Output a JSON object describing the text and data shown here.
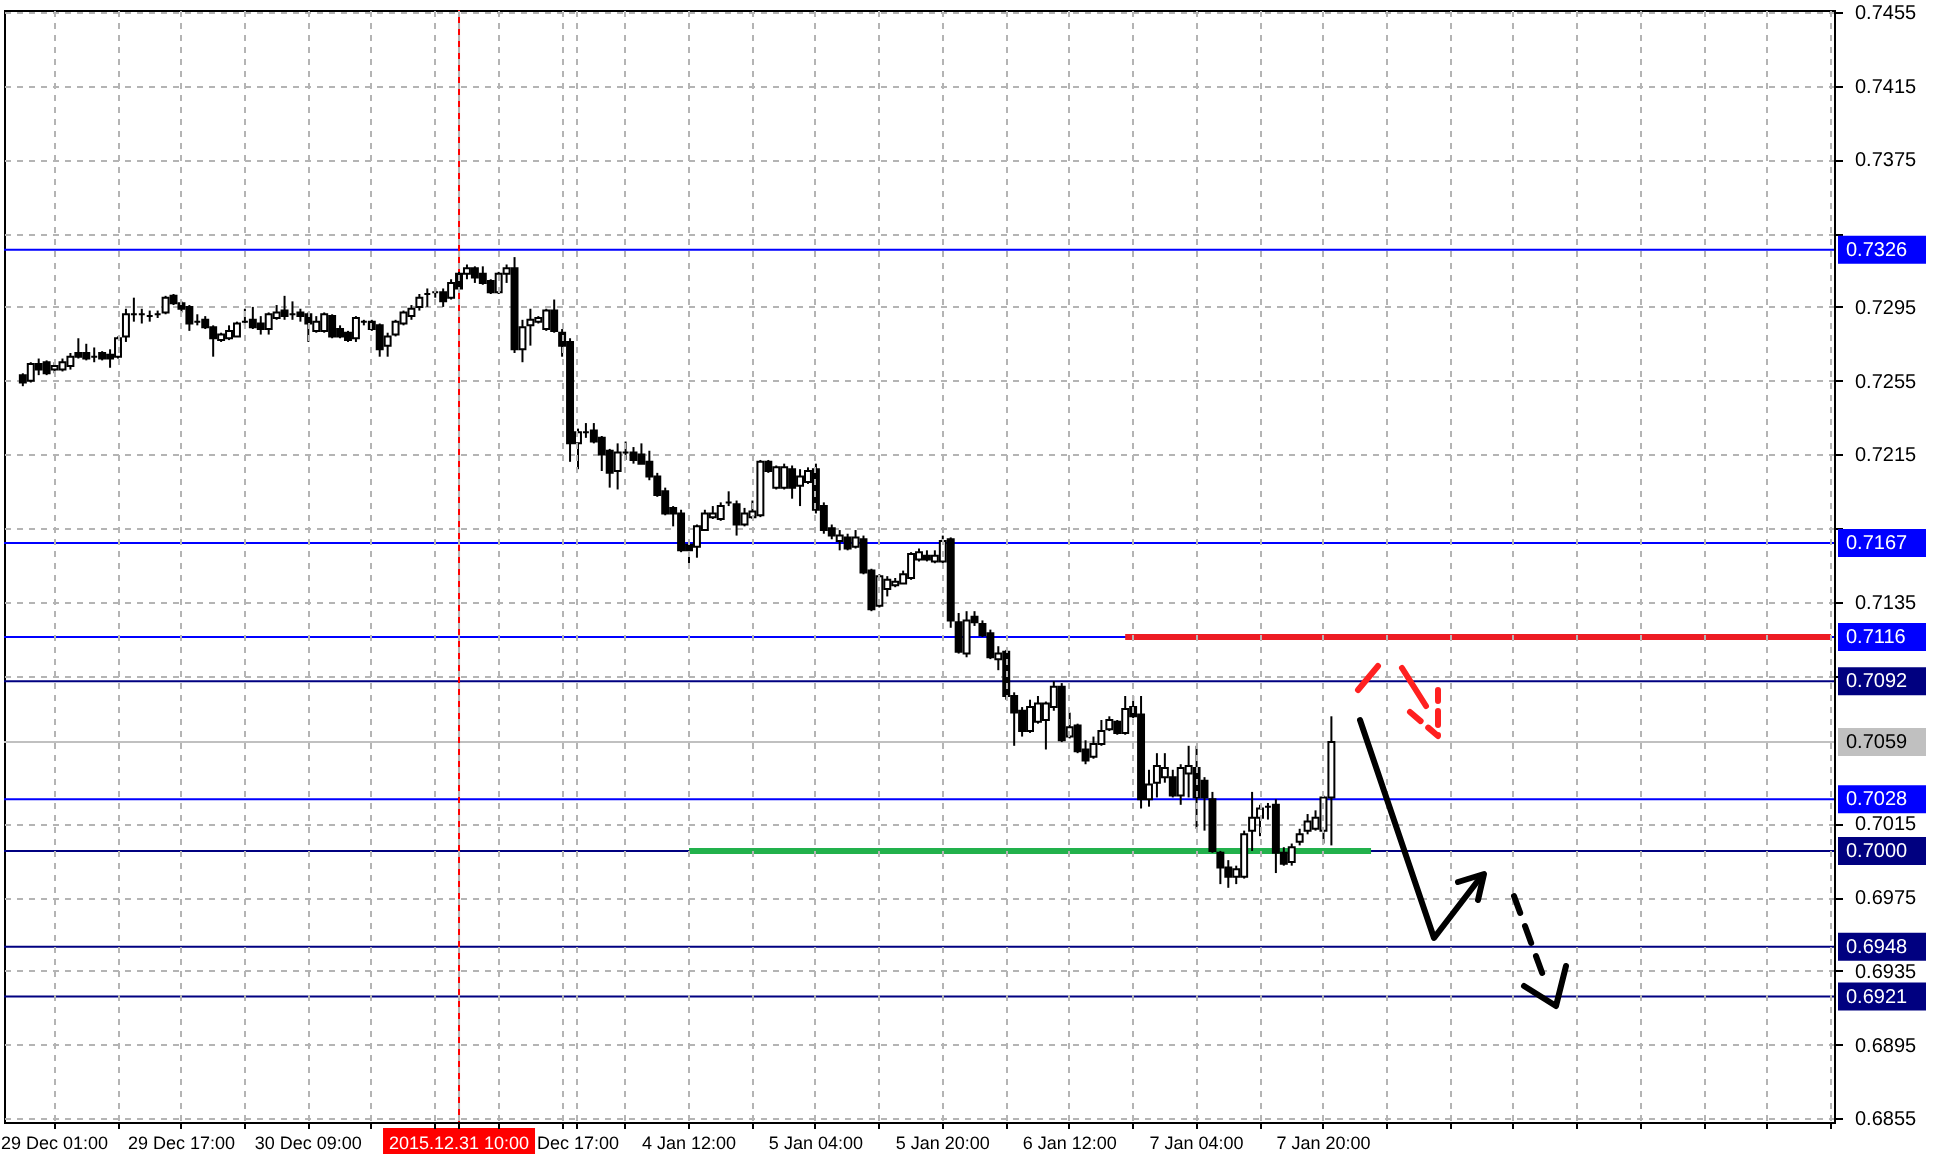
{
  "chart_data": {
    "type": "candlestick",
    "categories": [
      null,
      null,
      null,
      null,
      null,
      null,
      "29 Dec 01:00",
      null,
      null,
      null,
      null,
      null,
      null,
      null,
      null,
      null,
      null,
      null,
      null,
      null,
      null,
      null,
      "29 Dec 17:00",
      null,
      null,
      null,
      null,
      null,
      null,
      null,
      null,
      null,
      null,
      null,
      null,
      null,
      null,
      null,
      "30 Dec 09:00",
      null,
      null,
      null,
      null,
      null,
      null,
      null,
      null,
      null,
      null,
      null,
      null,
      null,
      null,
      null,
      null,
      null,
      null,
      "2015.12.31 10:00",
      null,
      null,
      null,
      null,
      null,
      null,
      null,
      null,
      null,
      null,
      null,
      null,
      null,
      null,
      "Dec 17:00",
      null,
      null,
      null,
      null,
      null,
      null,
      null,
      null,
      null,
      null,
      null,
      null,
      null,
      "4 Jan 12:00",
      null,
      null,
      null,
      null,
      null,
      null,
      null,
      null,
      null,
      null,
      null,
      null,
      null,
      null,
      null,
      "5 Jan 04:00",
      null,
      null,
      null,
      null,
      null,
      null,
      null,
      null,
      null,
      null,
      null,
      null,
      null,
      null,
      null,
      "5 Jan 20:00",
      null,
      null,
      null,
      null,
      null,
      null,
      null,
      null,
      null,
      null,
      null,
      null,
      null,
      null,
      null,
      "6 Jan 12:00",
      null,
      null,
      null,
      null,
      null,
      null,
      null,
      null,
      null,
      null,
      null,
      null,
      null,
      null,
      null,
      "7 Jan 04:00",
      null,
      null,
      null,
      null,
      null,
      null,
      null,
      null,
      null,
      null,
      null,
      null,
      null,
      null,
      null,
      "7 Jan 20:00",
      null,
      null,
      null,
      null,
      null,
      null,
      null,
      null,
      null,
      null,
      null,
      null,
      null,
      null,
      null,
      null,
      null,
      null,
      null,
      null,
      null,
      null,
      null,
      null,
      null,
      null,
      null,
      null,
      null,
      null,
      null,
      null,
      null,
      null,
      null,
      null,
      null,
      null,
      null,
      null,
      null,
      null,
      null,
      null,
      null,
      null,
      null,
      null,
      null,
      null,
      null,
      null,
      null,
      null,
      null,
      null,
      null,
      null,
      null,
      null,
      null,
      null,
      null,
      null
    ],
    "ohlc": [
      null,
      null,
      [
        0.7258,
        0.7259,
        0.7252,
        0.7254
      ],
      [
        0.7255,
        0.7265,
        0.7254,
        0.7264
      ],
      [
        0.7264,
        0.7267,
        0.7258,
        0.7261
      ],
      [
        0.7265,
        0.7266,
        0.7258,
        0.7259
      ],
      [
        0.7261,
        0.7265,
        0.7259,
        0.7263
      ],
      [
        0.7261,
        0.7267,
        0.726,
        0.7265
      ],
      [
        0.7263,
        0.727,
        0.7261,
        0.7268
      ],
      [
        0.727,
        0.7278,
        0.7267,
        0.7268
      ],
      [
        0.727,
        0.7275,
        0.7266,
        0.7267
      ],
      [
        0.7268,
        0.7273,
        0.7265,
        0.7268
      ],
      [
        0.727,
        0.7271,
        0.7266,
        0.7267
      ],
      [
        0.7269,
        0.7272,
        0.7262,
        0.7267
      ],
      [
        0.7268,
        0.7279,
        0.7267,
        0.7278
      ],
      [
        0.7279,
        0.7294,
        0.7276,
        0.7291
      ],
      [
        0.7291,
        0.73,
        0.7287,
        0.7291
      ],
      [
        0.7291,
        0.7294,
        0.7286,
        0.7291
      ],
      [
        0.729,
        0.7293,
        0.7287,
        0.729
      ],
      [
        0.7291,
        0.7293,
        0.7289,
        0.7291
      ],
      [
        0.7292,
        0.7301,
        0.7291,
        0.73
      ],
      [
        0.7301,
        0.7302,
        0.7296,
        0.7297
      ],
      [
        0.7297,
        0.7298,
        0.7292,
        0.7294
      ],
      [
        0.7295,
        0.7296,
        0.7282,
        0.7286
      ],
      [
        0.7287,
        0.7291,
        0.7285,
        0.7287
      ],
      [
        0.7288,
        0.729,
        0.7283,
        0.7284
      ],
      [
        0.7284,
        0.7285,
        0.7268,
        0.7278
      ],
      [
        0.7277,
        0.7281,
        0.7276,
        0.728
      ],
      [
        0.7278,
        0.7285,
        0.7277,
        0.7282
      ],
      [
        0.7279,
        0.7287,
        0.7279,
        0.7286
      ],
      [
        0.7287,
        0.7294,
        0.7285,
        0.7287
      ],
      [
        0.7288,
        0.7295,
        0.7283,
        0.7284
      ],
      [
        0.7286,
        0.729,
        0.728,
        0.7283
      ],
      [
        0.7283,
        0.7292,
        0.728,
        0.7291
      ],
      [
        0.7289,
        0.7296,
        0.7288,
        0.7292
      ],
      [
        0.7293,
        0.7301,
        0.7288,
        0.729
      ],
      [
        0.7291,
        0.7298,
        0.7288,
        0.7291
      ],
      [
        0.7292,
        0.7294,
        0.7287,
        0.729
      ],
      [
        0.7291,
        0.7292,
        0.7276,
        0.7286
      ],
      [
        0.7282,
        0.729,
        0.7281,
        0.7287
      ],
      [
        0.7282,
        0.7292,
        0.7281,
        0.7291
      ],
      [
        0.729,
        0.7291,
        0.7278,
        0.7279
      ],
      [
        0.7283,
        0.7285,
        0.7278,
        0.7279
      ],
      [
        0.7281,
        0.7282,
        0.7276,
        0.7277
      ],
      [
        0.7278,
        0.729,
        0.7276,
        0.7289
      ],
      [
        0.7287,
        0.7288,
        0.7285,
        0.7287
      ],
      [
        0.7287,
        0.7288,
        0.7282,
        0.7283
      ],
      [
        0.7285,
        0.7286,
        0.7268,
        0.7272
      ],
      [
        0.7274,
        0.7281,
        0.7268,
        0.7279
      ],
      [
        0.728,
        0.7288,
        0.7279,
        0.7287
      ],
      [
        0.7286,
        0.7293,
        0.7285,
        0.7292
      ],
      [
        0.729,
        0.7296,
        0.7288,
        0.7294
      ],
      [
        0.7295,
        0.7302,
        0.7293,
        0.73
      ],
      [
        0.7302,
        0.7305,
        0.7295,
        0.7302
      ],
      [
        0.7303,
        0.7305,
        0.73,
        0.7303
      ],
      [
        0.7303,
        0.7305,
        0.7295,
        0.7298
      ],
      [
        0.73,
        0.731,
        0.7299,
        0.7308
      ],
      [
        0.7313,
        0.7314,
        0.7304,
        0.7305
      ],
      [
        0.7313,
        0.7318,
        0.731,
        0.7316
      ],
      [
        0.7316,
        0.7317,
        0.7308,
        0.7311
      ],
      [
        0.7313,
        0.7317,
        0.7307,
        0.7308
      ],
      [
        0.7309,
        0.731,
        0.7302,
        0.7303
      ],
      [
        0.7303,
        0.7314,
        0.7302,
        0.7313
      ],
      [
        0.7313,
        0.7318,
        0.7308,
        0.7316
      ],
      [
        0.7316,
        0.7322,
        0.727,
        0.7272
      ],
      [
        0.7272,
        0.7288,
        0.7265,
        0.7284
      ],
      [
        0.7285,
        0.7294,
        0.7274,
        0.7288
      ],
      [
        0.7287,
        0.729,
        0.7286,
        0.7289
      ],
      [
        0.7283,
        0.7294,
        0.7282,
        0.7293
      ],
      [
        0.7293,
        0.7299,
        0.7281,
        0.7282
      ],
      [
        0.7281,
        0.7283,
        0.7268,
        0.7274
      ],
      [
        0.7276,
        0.7278,
        0.7211,
        0.7221
      ],
      [
        0.7221,
        0.7229,
        0.7207,
        0.7227
      ],
      [
        0.7227,
        0.7232,
        0.7224,
        0.7227
      ],
      [
        0.7228,
        0.7232,
        0.7221,
        0.7222
      ],
      [
        0.7224,
        0.7225,
        0.7206,
        0.7215
      ],
      [
        0.7217,
        0.7218,
        0.7197,
        0.7205
      ],
      [
        0.7206,
        0.7221,
        0.7196,
        0.7216
      ],
      [
        0.7216,
        0.7222,
        0.7212,
        0.7216
      ],
      [
        0.7216,
        0.7219,
        0.721,
        0.7212
      ],
      [
        0.7215,
        0.7221,
        0.721,
        0.721
      ],
      [
        0.7211,
        0.7217,
        0.7201,
        0.7203
      ],
      [
        0.7203,
        0.7205,
        0.7192,
        0.7193
      ],
      [
        0.7195,
        0.7197,
        0.7182,
        0.7183
      ],
      [
        0.7186,
        0.7187,
        0.7176,
        0.7183
      ],
      [
        0.7183,
        0.7185,
        0.7162,
        0.7163
      ],
      [
        0.7166,
        0.7167,
        0.7153,
        0.7163
      ],
      [
        0.7165,
        0.7177,
        0.7159,
        0.7176
      ],
      [
        0.7174,
        0.7185,
        0.7174,
        0.7183
      ],
      [
        0.7181,
        0.7187,
        0.718,
        0.7183
      ],
      [
        0.718,
        0.7189,
        0.7179,
        0.7187
      ],
      [
        0.7189,
        0.7195,
        0.7187,
        0.7189
      ],
      [
        0.7188,
        0.719,
        0.7171,
        0.7177
      ],
      [
        0.7177,
        0.7186,
        0.7176,
        0.7183
      ],
      [
        0.7181,
        0.719,
        0.718,
        0.7184
      ],
      [
        0.7182,
        0.7212,
        0.7181,
        0.7211
      ],
      [
        0.7211,
        0.7212,
        0.7205,
        0.7206
      ],
      [
        0.7197,
        0.7209,
        0.7196,
        0.7208
      ],
      [
        0.7197,
        0.721,
        0.7196,
        0.7208
      ],
      [
        0.7207,
        0.7209,
        0.7191,
        0.7197
      ],
      [
        0.7198,
        0.7207,
        0.7187,
        0.7203
      ],
      [
        0.72,
        0.7208,
        0.7199,
        0.7206
      ],
      [
        0.7207,
        0.721,
        0.7183,
        0.7185
      ],
      [
        0.7187,
        0.7189,
        0.7172,
        0.7174
      ],
      [
        0.7175,
        0.7177,
        0.7169,
        0.7171
      ],
      [
        0.7168,
        0.7174,
        0.7163,
        0.7171
      ],
      [
        0.717,
        0.7172,
        0.7163,
        0.7164
      ],
      [
        0.7165,
        0.7174,
        0.7164,
        0.717
      ],
      [
        0.7169,
        0.7171,
        0.715,
        0.7151
      ],
      [
        0.7152,
        0.7153,
        0.713,
        0.7131
      ],
      [
        0.7133,
        0.715,
        0.7132,
        0.7149
      ],
      [
        0.7142,
        0.7149,
        0.7138,
        0.7147
      ],
      [
        0.7144,
        0.7148,
        0.7143,
        0.7146
      ],
      [
        0.7145,
        0.7152,
        0.7145,
        0.715
      ],
      [
        0.7148,
        0.7162,
        0.7147,
        0.7161
      ],
      [
        0.7158,
        0.7164,
        0.7157,
        0.7162
      ],
      [
        0.716,
        0.7163,
        0.7157,
        0.7158
      ],
      [
        0.7157,
        0.7163,
        0.7156,
        0.716
      ],
      [
        0.7157,
        0.7171,
        0.7156,
        0.7168
      ],
      [
        0.7169,
        0.717,
        0.7121,
        0.7125
      ],
      [
        0.7124,
        0.7129,
        0.7107,
        0.7108
      ],
      [
        0.7107,
        0.713,
        0.7105,
        0.7125
      ],
      [
        0.7127,
        0.713,
        0.7122,
        0.7124
      ],
      [
        0.7123,
        0.7125,
        0.7116,
        0.7117
      ],
      [
        0.7118,
        0.712,
        0.7104,
        0.7105
      ],
      [
        0.7104,
        0.7111,
        0.7098,
        0.7107
      ],
      [
        0.7108,
        0.7109,
        0.7082,
        0.7084
      ],
      [
        0.7084,
        0.7086,
        0.7057,
        0.7075
      ],
      [
        0.7076,
        0.7078,
        0.7062,
        0.7065
      ],
      [
        0.7065,
        0.7082,
        0.7064,
        0.7078
      ],
      [
        0.707,
        0.7084,
        0.7069,
        0.708
      ],
      [
        0.7071,
        0.7081,
        0.7055,
        0.708
      ],
      [
        0.7078,
        0.7092,
        0.7076,
        0.7089
      ],
      [
        0.7089,
        0.7091,
        0.7059,
        0.706
      ],
      [
        0.7062,
        0.7075,
        0.7061,
        0.7067
      ],
      [
        0.7068,
        0.7069,
        0.7053,
        0.7054
      ],
      [
        0.7055,
        0.706,
        0.7047,
        0.7049
      ],
      [
        0.7051,
        0.7062,
        0.705,
        0.7058
      ],
      [
        0.7058,
        0.7071,
        0.7057,
        0.7065
      ],
      [
        0.7066,
        0.7073,
        0.7065,
        0.7071
      ],
      [
        0.707,
        0.7071,
        0.7063,
        0.7064
      ],
      [
        0.7064,
        0.7084,
        0.7063,
        0.7077
      ],
      [
        0.7078,
        0.7084,
        0.7072,
        0.7073
      ],
      [
        0.7074,
        0.7084,
        0.7023,
        0.7028
      ],
      [
        0.7028,
        0.7044,
        0.7024,
        0.7036
      ],
      [
        0.7037,
        0.7053,
        0.7029,
        0.7046
      ],
      [
        0.704,
        0.7053,
        0.7037,
        0.7045
      ],
      [
        0.704,
        0.7044,
        0.7029,
        0.703
      ],
      [
        0.703,
        0.7047,
        0.7025,
        0.7045
      ],
      [
        0.7042,
        0.7057,
        0.7029,
        0.7046
      ],
      [
        0.7045,
        0.7057,
        0.7012,
        0.7029
      ],
      [
        0.7038,
        0.704,
        0.7011,
        0.7029
      ],
      [
        0.7028,
        0.7032,
        0.6999,
        0.7
      ],
      [
        0.6999,
        0.7,
        0.6982,
        0.6991
      ],
      [
        0.6991,
        0.6995,
        0.698,
        0.6986
      ],
      [
        0.6986,
        0.6992,
        0.6982,
        0.699
      ],
      [
        0.6986,
        0.7011,
        0.6985,
        0.7009
      ],
      [
        0.7011,
        0.7032,
        0.7,
        0.7018
      ],
      [
        0.7018,
        0.7025,
        0.7008,
        0.7023
      ],
      [
        0.7024,
        0.7026,
        0.7017,
        0.7024
      ],
      [
        0.7025,
        0.7028,
        0.6988,
        0.6999
      ],
      [
        0.6999,
        0.7002,
        0.6992,
        0.6993
      ],
      [
        0.6994,
        0.7004,
        0.6992,
        0.7002
      ],
      [
        0.7005,
        0.7012,
        0.7003,
        0.7009
      ],
      [
        0.7011,
        0.702,
        0.7009,
        0.7016
      ],
      [
        0.7012,
        0.7022,
        0.7011,
        0.7018
      ],
      [
        0.7011,
        0.703,
        0.7004,
        0.7029
      ],
      [
        0.7029,
        0.7073,
        0.7003,
        0.7059
      ],
      null,
      null,
      null,
      null,
      null,
      null,
      null,
      null,
      null,
      null,
      null,
      null,
      null,
      null,
      null,
      null,
      null,
      null,
      null,
      null,
      null,
      null,
      null,
      null,
      null,
      null,
      null,
      null,
      null,
      null,
      null,
      null,
      null,
      null,
      null,
      null,
      null,
      null,
      null,
      null,
      null,
      null,
      null,
      null,
      null,
      null,
      null,
      null,
      null,
      null,
      null,
      null,
      null,
      null,
      null,
      null,
      null,
      null,
      null,
      null,
      null,
      null,
      null
    ],
    "series": [
      {
        "type": "line",
        "color": "#22b14c",
        "values": [
          null,
          null,
          null,
          null,
          null,
          null,
          null,
          null,
          null,
          null,
          null,
          null,
          null,
          null,
          null,
          null,
          null,
          null,
          null,
          null,
          null,
          null,
          null,
          null,
          null,
          null,
          null,
          null,
          null,
          null,
          null,
          null,
          null,
          null,
          null,
          null,
          null,
          null,
          null,
          null,
          null,
          null,
          null,
          null,
          null,
          null,
          null,
          null,
          null,
          null,
          null,
          null,
          null,
          null,
          null,
          null,
          null,
          null,
          null,
          null,
          null,
          null,
          null,
          null,
          null,
          null,
          null,
          null,
          null,
          null,
          null,
          null,
          null,
          null,
          null,
          null,
          null,
          null,
          null,
          null,
          null,
          null,
          null,
          null,
          null,
          null,
          0.7,
          0.7,
          0.7,
          0.7,
          0.7,
          0.7,
          0.7,
          0.7,
          0.7,
          0.7,
          0.7,
          0.7,
          0.7,
          0.7,
          0.7,
          0.7,
          0.7,
          0.7,
          0.7,
          0.7,
          0.7,
          0.7,
          0.7,
          0.7,
          0.7,
          0.7,
          0.7,
          0.7,
          0.7,
          0.7,
          0.7,
          0.7,
          0.7,
          0.7,
          0.7,
          0.7,
          0.7,
          0.7,
          0.7,
          0.7,
          0.7,
          0.7,
          0.7,
          0.7,
          0.7,
          0.7,
          0.7,
          0.7,
          0.7,
          0.7,
          0.7,
          0.7,
          0.7,
          0.7,
          0.7,
          0.7,
          0.7,
          0.7,
          0.7,
          0.7,
          0.7,
          0.7,
          0.7,
          0.7,
          0.7,
          0.7,
          0.7,
          0.7,
          0.7,
          0.7,
          0.7,
          0.7,
          0.7,
          0.7,
          0.7,
          0.7,
          0.7,
          0.7,
          0.7,
          0.7,
          0.7,
          0.7,
          0.7,
          0.7,
          0.7,
          0.7,
          0.7,
          null,
          null,
          null,
          null,
          null,
          null,
          null,
          null,
          null,
          null,
          null,
          null,
          null,
          null,
          null,
          null,
          null,
          null,
          null,
          null,
          null,
          null,
          null,
          null,
          null,
          null,
          null,
          null,
          null,
          null,
          null,
          null,
          null,
          null,
          null,
          null,
          null,
          null,
          null,
          null,
          null,
          null,
          null,
          null,
          null,
          null,
          null,
          null,
          null,
          null,
          null,
          null,
          null,
          null,
          null,
          null,
          null,
          null
        ]
      },
      {
        "type": "line",
        "color": "#ed1c24",
        "values": [
          null,
          null,
          null,
          null,
          null,
          null,
          null,
          null,
          null,
          null,
          null,
          null,
          null,
          null,
          null,
          null,
          null,
          null,
          null,
          null,
          null,
          null,
          null,
          null,
          null,
          null,
          null,
          null,
          null,
          null,
          null,
          null,
          null,
          null,
          null,
          null,
          null,
          null,
          null,
          null,
          null,
          null,
          null,
          null,
          null,
          null,
          null,
          null,
          null,
          null,
          null,
          null,
          null,
          null,
          null,
          null,
          null,
          null,
          null,
          null,
          null,
          null,
          null,
          null,
          null,
          null,
          null,
          null,
          null,
          null,
          null,
          null,
          null,
          null,
          null,
          null,
          null,
          null,
          null,
          null,
          null,
          null,
          null,
          null,
          null,
          null,
          null,
          null,
          null,
          null,
          null,
          null,
          null,
          null,
          null,
          null,
          null,
          null,
          null,
          null,
          null,
          null,
          null,
          null,
          null,
          null,
          null,
          null,
          null,
          null,
          null,
          null,
          null,
          null,
          null,
          null,
          null,
          null,
          null,
          null,
          null,
          null,
          null,
          null,
          null,
          null,
          null,
          null,
          null,
          null,
          null,
          null,
          null,
          null,
          null,
          null,
          null,
          null,
          null,
          null,
          null,
          0.7116,
          0.7116,
          0.7116,
          0.7116,
          0.7116,
          0.7116,
          0.7116,
          0.7116,
          0.7116,
          0.7116,
          0.7116,
          0.7116,
          0.7116,
          0.7116,
          0.7116,
          0.7116,
          0.7116,
          0.7116,
          0.7116,
          0.7116,
          0.7116,
          0.7116,
          0.7116,
          0.7116,
          0.7116,
          0.7116,
          0.7116,
          0.7116,
          0.7116,
          0.7116,
          0.7116,
          0.7116,
          0.7116,
          0.7116,
          0.7116,
          0.7116,
          0.7116,
          0.7116,
          0.7116,
          0.7116,
          0.7116,
          0.7116,
          0.7116,
          0.7116,
          0.7116,
          0.7116,
          0.7116,
          0.7116,
          0.7116,
          0.7116,
          0.7116,
          0.7116,
          0.7116,
          0.7116,
          0.7116,
          0.7116,
          0.7116,
          0.7116,
          0.7116,
          0.7116,
          0.7116,
          0.7116,
          0.7116,
          0.7116,
          0.7116,
          0.7116,
          0.7116,
          0.7116,
          0.7116,
          0.7116,
          0.7116,
          0.7116,
          0.7116,
          0.7116,
          0.7116,
          0.7116,
          0.7116,
          0.7116,
          0.7116,
          0.7116,
          0.7116,
          0.7116,
          0.7116,
          0.7116,
          0.7116,
          0.7116,
          0.7116,
          0.7116,
          0.7116,
          0.7116
        ]
      }
    ],
    "ylim": [
      0.6853,
      0.7456
    ],
    "yticks": [
      0.6855,
      0.6895,
      0.6935,
      0.6975,
      0.7015,
      {
        "value": 0.7095,
        "label": null
      },
      0.7135,
      {
        "value": 0.7175,
        "label": null
      },
      0.7215,
      0.7255,
      0.7295,
      {
        "value": 0.7335,
        "label": null
      },
      0.7375,
      0.7415,
      0.7455
    ],
    "grid": true,
    "ref_lines": [
      {
        "axis": "y",
        "value": 0.7326,
        "label": "0.7326",
        "color": "#0000ff"
      },
      {
        "axis": "y",
        "value": 0.7167,
        "label": "0.7167",
        "color": "#0000ff"
      },
      {
        "axis": "y",
        "value": 0.7116,
        "label": "0.7116",
        "color": "#0000ff"
      },
      {
        "axis": "y",
        "value": 0.7092,
        "label": "0.7092",
        "color": "#000080"
      },
      {
        "axis": "y",
        "value": 0.7059,
        "label": "0.7059",
        "color": "#c0c0c0"
      },
      {
        "axis": "y",
        "value": 0.7028,
        "label": "0.7028",
        "color": "#0000ff"
      },
      {
        "axis": "y",
        "value": 0.7,
        "label": "0.7000",
        "color": "#000080"
      },
      {
        "axis": "y",
        "value": 0.6948,
        "label": "0.6948",
        "color": "#000080"
      },
      {
        "axis": "y",
        "value": 0.6921,
        "label": "0.6921",
        "color": "#000080"
      },
      {
        "axis": "x",
        "value": "2015.12.31 10:00",
        "color": "#ff0000"
      }
    ]
  }
}
